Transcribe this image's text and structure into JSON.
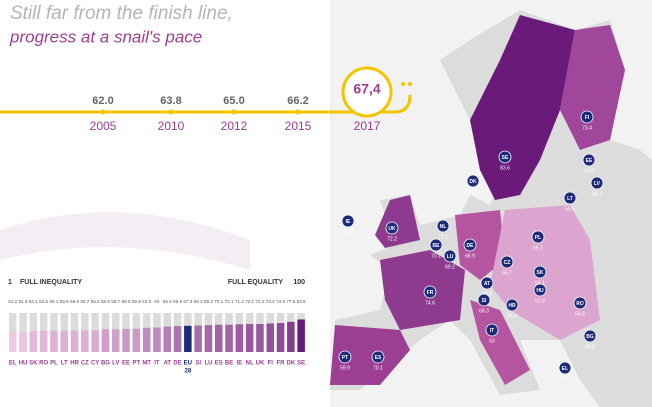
{
  "header": {
    "title": "Still far from the finish line,",
    "subtitle": "progress at a snail's pace"
  },
  "chart_data": [
    {
      "type": "timeline",
      "color": "#f5c400",
      "categories": [
        "2005",
        "2010",
        "2012",
        "2015",
        "2017"
      ],
      "values": [
        62.0,
        63.8,
        65.0,
        66.2,
        67.4
      ],
      "value_labels": [
        "62.0",
        "63.8",
        "65.0",
        "66.2",
        "67,4"
      ]
    },
    {
      "type": "bar",
      "low_label": "1",
      "low_text": "FULL INEQUALITY",
      "high_text": "FULL EQUALITY",
      "high_label": "100",
      "ylim": [
        1,
        100
      ],
      "color_low": "#eec8e2",
      "color_high": "#6a1b7a",
      "highlight_color": "#1d2b7a",
      "highlight": "EU",
      "highlight_suffix": "28",
      "categories": [
        "EL",
        "HU",
        "SK",
        "RO",
        "PL",
        "LT",
        "HR",
        "CZ",
        "CY",
        "BG",
        "LV",
        "EE",
        "PT",
        "MT",
        "IT",
        "AT",
        "DE",
        "EU",
        "SI",
        "LU",
        "ES",
        "BE",
        "IE",
        "NL",
        "UK",
        "FI",
        "FR",
        "DK",
        "SE"
      ],
      "values": [
        51.2,
        51.9,
        54.1,
        54.5,
        55.1,
        55.5,
        55.6,
        55.7,
        56.3,
        58.8,
        58.7,
        59.8,
        59.9,
        62.5,
        63.0,
        65.3,
        66.9,
        67.4,
        68.3,
        69.2,
        70.1,
        70.1,
        71.3,
        72.1,
        72.2,
        73.4,
        74.6,
        77.5,
        83.6
      ]
    }
  ]
}
